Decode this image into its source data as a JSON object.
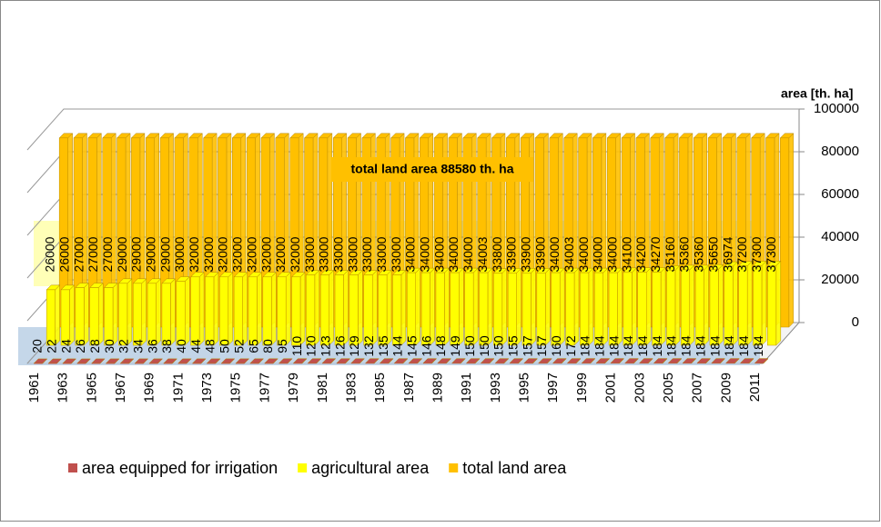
{
  "chart_data": {
    "type": "bar3d",
    "y_axis_label": "area  [th. ha]",
    "annotation": "total land area 88580 th. ha",
    "categories": [
      "1961",
      null,
      "1963",
      null,
      "1965",
      null,
      "1967",
      null,
      "1969",
      null,
      "1971",
      null,
      "1973",
      null,
      "1975",
      null,
      "1977",
      null,
      "1979",
      null,
      "1981",
      null,
      "1983",
      null,
      "1985",
      null,
      "1987",
      null,
      "1989",
      null,
      "1991",
      null,
      "1993",
      null,
      "1995",
      null,
      "1997",
      null,
      "1999",
      null,
      "2001",
      null,
      "2003",
      null,
      "2005",
      null,
      "2007",
      null,
      "2009",
      null,
      "2011"
    ],
    "series": [
      {
        "name": "area equipped for irrigation",
        "color": "#c0504d",
        "values": [
          20,
          22,
          24,
          26,
          28,
          30,
          32,
          34,
          36,
          38,
          40,
          44,
          48,
          50,
          52,
          65,
          80,
          95,
          110,
          120,
          123,
          126,
          129,
          132,
          135,
          144,
          145,
          146,
          148,
          149,
          150,
          150,
          150,
          155,
          157,
          157,
          160,
          172,
          184,
          184,
          184,
          184,
          184,
          184,
          184,
          184,
          184,
          184,
          184,
          184,
          184
        ]
      },
      {
        "name": "agricultural area",
        "color": "#ffff00",
        "values": [
          26000,
          26000,
          27000,
          27000,
          27000,
          29000,
          29000,
          29000,
          29000,
          30000,
          32000,
          32000,
          32000,
          32000,
          32000,
          32000,
          32000,
          32000,
          33000,
          33000,
          33000,
          33000,
          33000,
          33000,
          33000,
          34000,
          34000,
          34000,
          34000,
          34000,
          34003,
          33800,
          33900,
          33900,
          33900,
          34000,
          34003,
          34000,
          34000,
          34000,
          34100,
          34200,
          34270,
          35160,
          35360,
          35360,
          35650,
          36974,
          37200,
          37300,
          37300
        ]
      },
      {
        "name": "total land area",
        "color": "#ffc000",
        "values": [
          88580,
          88580,
          88580,
          88580,
          88580,
          88580,
          88580,
          88580,
          88580,
          88580,
          88580,
          88580,
          88580,
          88580,
          88580,
          88580,
          88580,
          88580,
          88580,
          88580,
          88580,
          88580,
          88580,
          88580,
          88580,
          88580,
          88580,
          88580,
          88580,
          88580,
          88580,
          88580,
          88580,
          88580,
          88580,
          88580,
          88580,
          88580,
          88580,
          88580,
          88580,
          88580,
          88580,
          88580,
          88580,
          88580,
          88580,
          88580,
          88580,
          88580,
          88580
        ]
      }
    ],
    "ylim": [
      0,
      100000
    ],
    "yticks": [
      0,
      20000,
      40000,
      60000,
      80000,
      100000
    ],
    "grid": true
  }
}
